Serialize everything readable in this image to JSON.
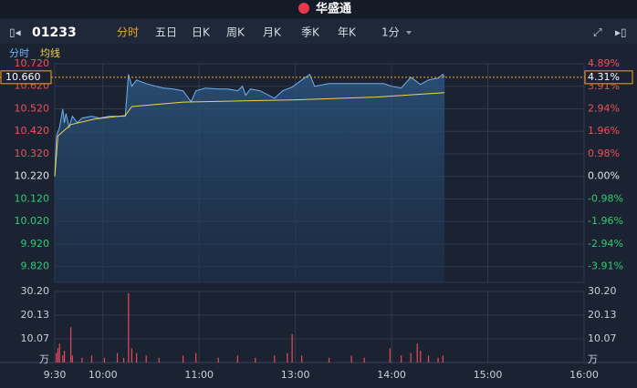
{
  "header": {
    "logo": "华盛通"
  },
  "toolbar": {
    "symbol": "01233",
    "tabs": [
      "分时",
      "五日",
      "日K",
      "周K",
      "月K",
      "季K",
      "年K",
      "1分"
    ],
    "active_tab": 0
  },
  "chart_data": [
    {
      "type": "line",
      "xlim": [
        0,
        330
      ],
      "xticks": [
        {
          "value": 0,
          "label": "9:30"
        },
        {
          "value": 30,
          "label": "10:00"
        },
        {
          "value": 90,
          "label": "11:00"
        },
        {
          "value": 150,
          "label": "13:00"
        },
        {
          "value": 210,
          "label": "14:00"
        },
        {
          "value": 270,
          "label": "15:00"
        },
        {
          "value": 330,
          "label": "16:00"
        }
      ],
      "ylim": [
        9.75,
        10.72
      ],
      "yticks": [
        {
          "value": 10.72,
          "label": "10.720"
        },
        {
          "value": 10.62,
          "label": "10.620"
        },
        {
          "value": 10.52,
          "label": "10.520"
        },
        {
          "value": 10.42,
          "label": "10.420"
        },
        {
          "value": 10.32,
          "label": "10.320"
        },
        {
          "value": 10.22,
          "label": "10.220"
        },
        {
          "value": 10.12,
          "label": "10.120"
        },
        {
          "value": 10.02,
          "label": "10.020"
        },
        {
          "value": 9.92,
          "label": "9.920"
        },
        {
          "value": 9.82,
          "label": "9.820"
        }
      ],
      "y2lim": [
        -4.6,
        4.89
      ],
      "y2ticks": [
        {
          "value": 4.89,
          "label": "4.89%"
        },
        {
          "value": 3.91,
          "label": "3.91%"
        },
        {
          "value": 2.94,
          "label": "2.94%"
        },
        {
          "value": 1.96,
          "label": "1.96%"
        },
        {
          "value": 0.98,
          "label": "0.98%"
        },
        {
          "value": 0,
          "label": "0.00%"
        },
        {
          "value": -0.98,
          "label": "-0.98%"
        },
        {
          "value": -1.96,
          "label": "-1.96%"
        },
        {
          "value": -2.94,
          "label": "-2.94%"
        },
        {
          "value": -3.91,
          "label": "-3.91%"
        }
      ],
      "grid": true,
      "last_price": {
        "value": 10.66,
        "label": "10.660"
      },
      "last_change": {
        "value": 4.31,
        "label": "4.31%"
      },
      "series": [
        {
          "name": "分时",
          "color": "#6fb2f0",
          "x": [
            0,
            1,
            3,
            5,
            6,
            7,
            9,
            11,
            14,
            17,
            23,
            28,
            34,
            40,
            44,
            46,
            48,
            51,
            57,
            63,
            68,
            74,
            80,
            85,
            88,
            94,
            102,
            108,
            114,
            117,
            119,
            122,
            128,
            137,
            142,
            148,
            154,
            159,
            162,
            171,
            182,
            193,
            205,
            210,
            216,
            222,
            228,
            233,
            239,
            242,
            243
          ],
          "values": [
            10.22,
            10.398,
            10.438,
            10.519,
            10.458,
            10.499,
            10.438,
            10.487,
            10.458,
            10.479,
            10.487,
            10.479,
            10.487,
            10.487,
            10.487,
            10.673,
            10.62,
            10.648,
            10.632,
            10.62,
            10.612,
            10.608,
            10.6,
            10.551,
            10.6,
            10.612,
            10.608,
            10.608,
            10.6,
            10.62,
            10.58,
            10.608,
            10.6,
            10.567,
            10.6,
            10.616,
            10.648,
            10.673,
            10.62,
            10.632,
            10.632,
            10.632,
            10.632,
            10.62,
            10.612,
            10.66,
            10.628,
            10.648,
            10.656,
            10.673,
            10.66
          ]
        },
        {
          "name": "均线",
          "color": "#f2d04b",
          "x": [
            0,
            2,
            10,
            25,
            44,
            48,
            80,
            150,
            200,
            243
          ],
          "values": [
            10.22,
            10.4,
            10.45,
            10.475,
            10.49,
            10.53,
            10.55,
            10.56,
            10.572,
            10.592
          ]
        }
      ]
    },
    {
      "type": "bar",
      "unit": "万",
      "ylim": [
        0,
        30.2
      ],
      "yticks": [
        {
          "value": 30.2,
          "label": "30.20"
        },
        20.13,
        10.07
      ],
      "x": [
        1,
        2,
        3,
        5,
        6,
        10,
        11,
        17,
        23,
        31,
        39,
        43,
        46,
        48,
        51,
        57,
        65,
        80,
        88,
        102,
        114,
        125,
        137,
        145,
        148,
        154,
        171,
        185,
        193,
        209,
        216,
        222,
        226,
        228,
        233,
        239,
        242
      ],
      "color": "#e8495a",
      "values": [
        4,
        6,
        8,
        3,
        5,
        15,
        3,
        2,
        3,
        2,
        4,
        2,
        29.5,
        6,
        4,
        3,
        2,
        3,
        4,
        2,
        3,
        2,
        3,
        4,
        12,
        3,
        2,
        3,
        2,
        6,
        3,
        4,
        8,
        5,
        3,
        2,
        3
      ]
    }
  ]
}
